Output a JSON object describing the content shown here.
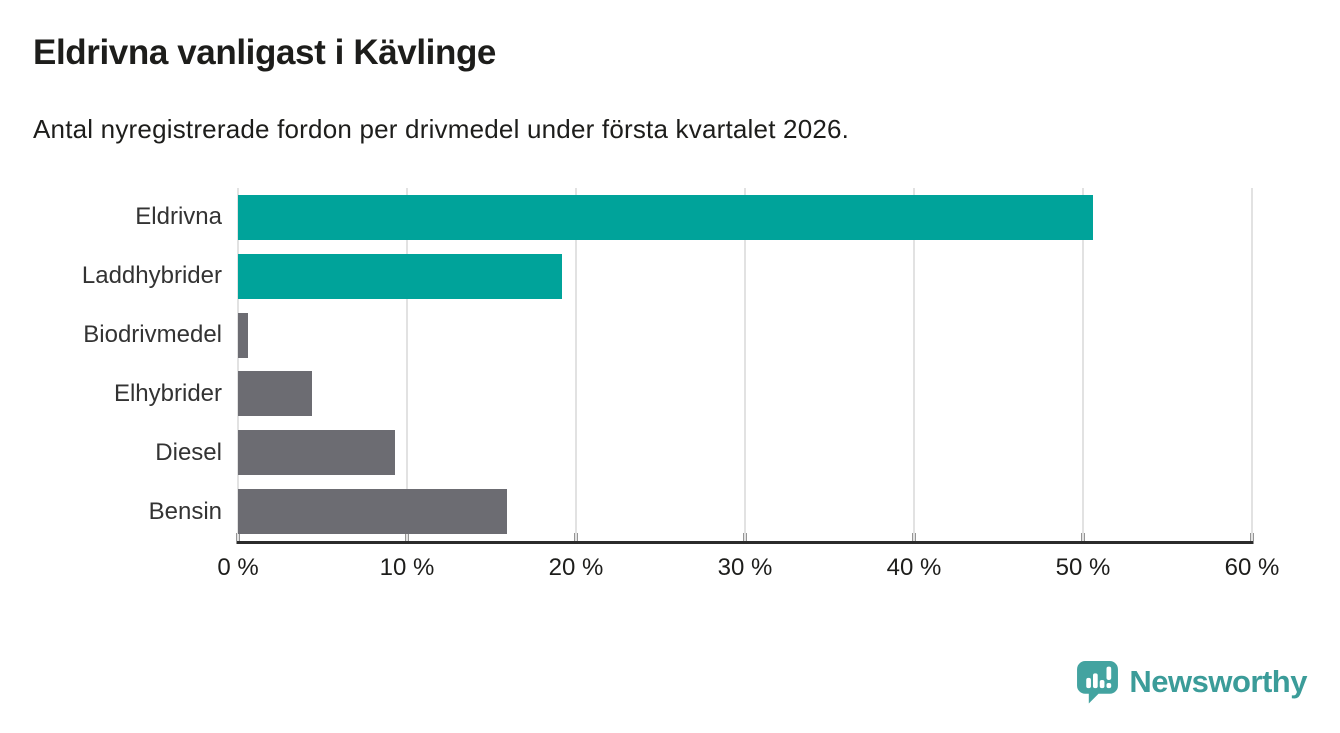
{
  "title": "Eldrivna vanligast i Kävlinge",
  "subtitle": "Antal nyregistrerade fordon per drivmedel under första kvartalet 2026.",
  "colors": {
    "teal": "#00a39a",
    "gray": "#6c6c72",
    "axis": "#2b2b2b",
    "gridline": "#e2e2e2",
    "title_text": "#1d1d1b",
    "category_text": "#333333",
    "logo_teal": "#3b9c99",
    "logo_icon_teal": "#43a3a0"
  },
  "chart_data": {
    "type": "bar",
    "orientation": "horizontal",
    "title": "Eldrivna vanligast i Kävlinge",
    "subtitle": "Antal nyregistrerade fordon per drivmedel under första kvartalet 2026.",
    "categories": [
      "Eldrivna",
      "Laddhybrider",
      "Biodrivmedel",
      "Elhybrider",
      "Diesel",
      "Bensin"
    ],
    "values": [
      50.6,
      19.2,
      0.6,
      4.4,
      9.3,
      15.9
    ],
    "unit": "%",
    "bar_colors": [
      "#00a39a",
      "#00a39a",
      "#6c6c72",
      "#6c6c72",
      "#6c6c72",
      "#6c6c72"
    ],
    "xlim": [
      0,
      60
    ],
    "x_ticks": [
      0,
      10,
      20,
      30,
      40,
      50,
      60
    ],
    "x_tick_labels": [
      "0 %",
      "10 %",
      "20 %",
      "30 %",
      "40 %",
      "50 %",
      "60 %"
    ],
    "grid": "vertical",
    "legend": "none"
  },
  "logo": {
    "text": "Newsworthy"
  }
}
